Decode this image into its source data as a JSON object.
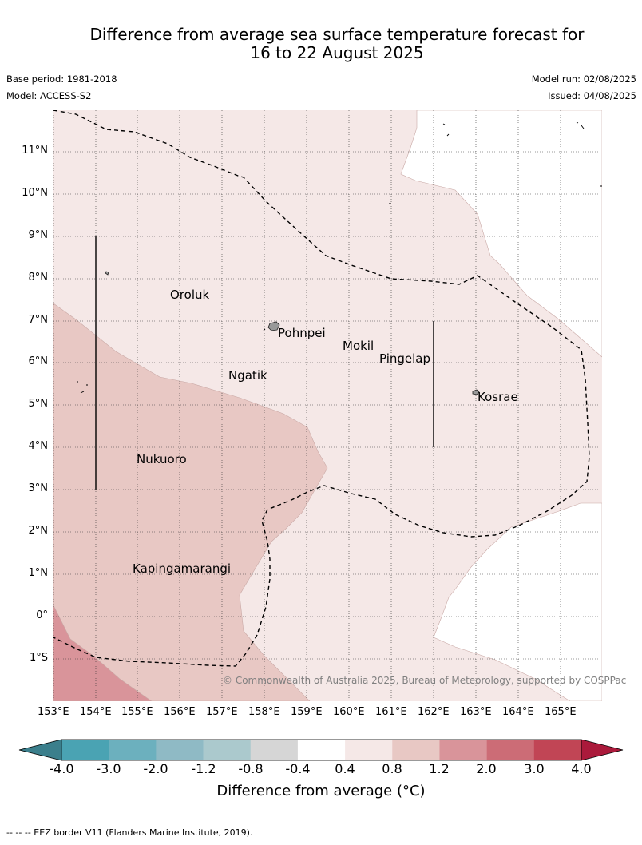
{
  "title": {
    "line1": "Difference from average sea surface temperature forecast for",
    "line2": "16 to 22 August 2025"
  },
  "meta": {
    "base_period": "Base period: 1981-2018",
    "model": "Model: ACCESS-S2",
    "model_run": "Model run: 02/08/2025",
    "issued": "Issued: 04/08/2025"
  },
  "map": {
    "lon_labels": [
      "153°E",
      "154°E",
      "155°E",
      "156°E",
      "157°E",
      "158°E",
      "159°E",
      "160°E",
      "161°E",
      "162°E",
      "163°E",
      "164°E",
      "165°E"
    ],
    "lat_labels": [
      "11°N",
      "10°N",
      "9°N",
      "8°N",
      "7°N",
      "6°N",
      "5°N",
      "4°N",
      "3°N",
      "2°N",
      "1°N",
      "0°",
      "1°S"
    ],
    "islands": {
      "oroluk": "Oroluk",
      "pohnpei": "Pohnpei",
      "mokil": "Mokil",
      "pingelap": "Pingelap",
      "ngatik": "Ngatik",
      "kosrae": "Kosrae",
      "nukuoro": "Nukuoro",
      "kapingamarangi": "Kapingamarangi"
    },
    "attribution": "© Commonwealth of Australia 2025, Bureau of Meteorology, supported by COSPPac",
    "fill_colors": {
      "band_0.4_0.8": "#f5e8e7",
      "band_0.8_1.2": "#e8c8c4",
      "band_1.2_2.0": "#d9949a"
    }
  },
  "colorbar": {
    "ticks": [
      "-4.0",
      "-3.0",
      "-2.0",
      "-1.2",
      "-0.8",
      "-0.4",
      "0.4",
      "0.8",
      "1.2",
      "2.0",
      "3.0",
      "4.0"
    ],
    "colors": [
      "#3b7f8c",
      "#4aa3b3",
      "#6cb0be",
      "#8fbac5",
      "#abc9cd",
      "#d6d6d6",
      "#ffffff",
      "#f5e8e7",
      "#e8c8c4",
      "#d9949a",
      "#cc6c76",
      "#c14555",
      "#ab1a3b"
    ],
    "label": "Difference from average (°C)"
  },
  "footnote": "--  --  -- EEZ border V11 (Flanders Marine Institute, 2019)."
}
